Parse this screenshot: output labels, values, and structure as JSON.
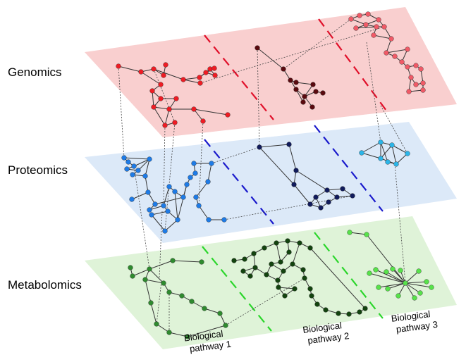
{
  "layers": [
    {
      "label": "Genomics",
      "color": "#f9cfcf",
      "divider": "#e0102a",
      "node_colors": {
        "p1": "#ee1c24",
        "p2": "#5a0a0f",
        "p3": "#f05a67"
      }
    },
    {
      "label": "Proteomics",
      "color": "#dce9f8",
      "divider": "#1a1acc",
      "node_colors": {
        "p1": "#1e7be6",
        "p2": "#111b5c",
        "p3": "#2bb5e8"
      }
    },
    {
      "label": "Metabolomics",
      "color": "#dff3d8",
      "divider": "#2bd62b",
      "node_colors": {
        "p1": "#2f8a2f",
        "p2": "#13430f",
        "p3": "#57e24a"
      }
    }
  ],
  "pathways": [
    {
      "line1": "Biological",
      "line2": "pathway 1"
    },
    {
      "line1": "Biological",
      "line2": "pathway 2"
    },
    {
      "line1": "Biological",
      "line2": "pathway 3"
    }
  ]
}
